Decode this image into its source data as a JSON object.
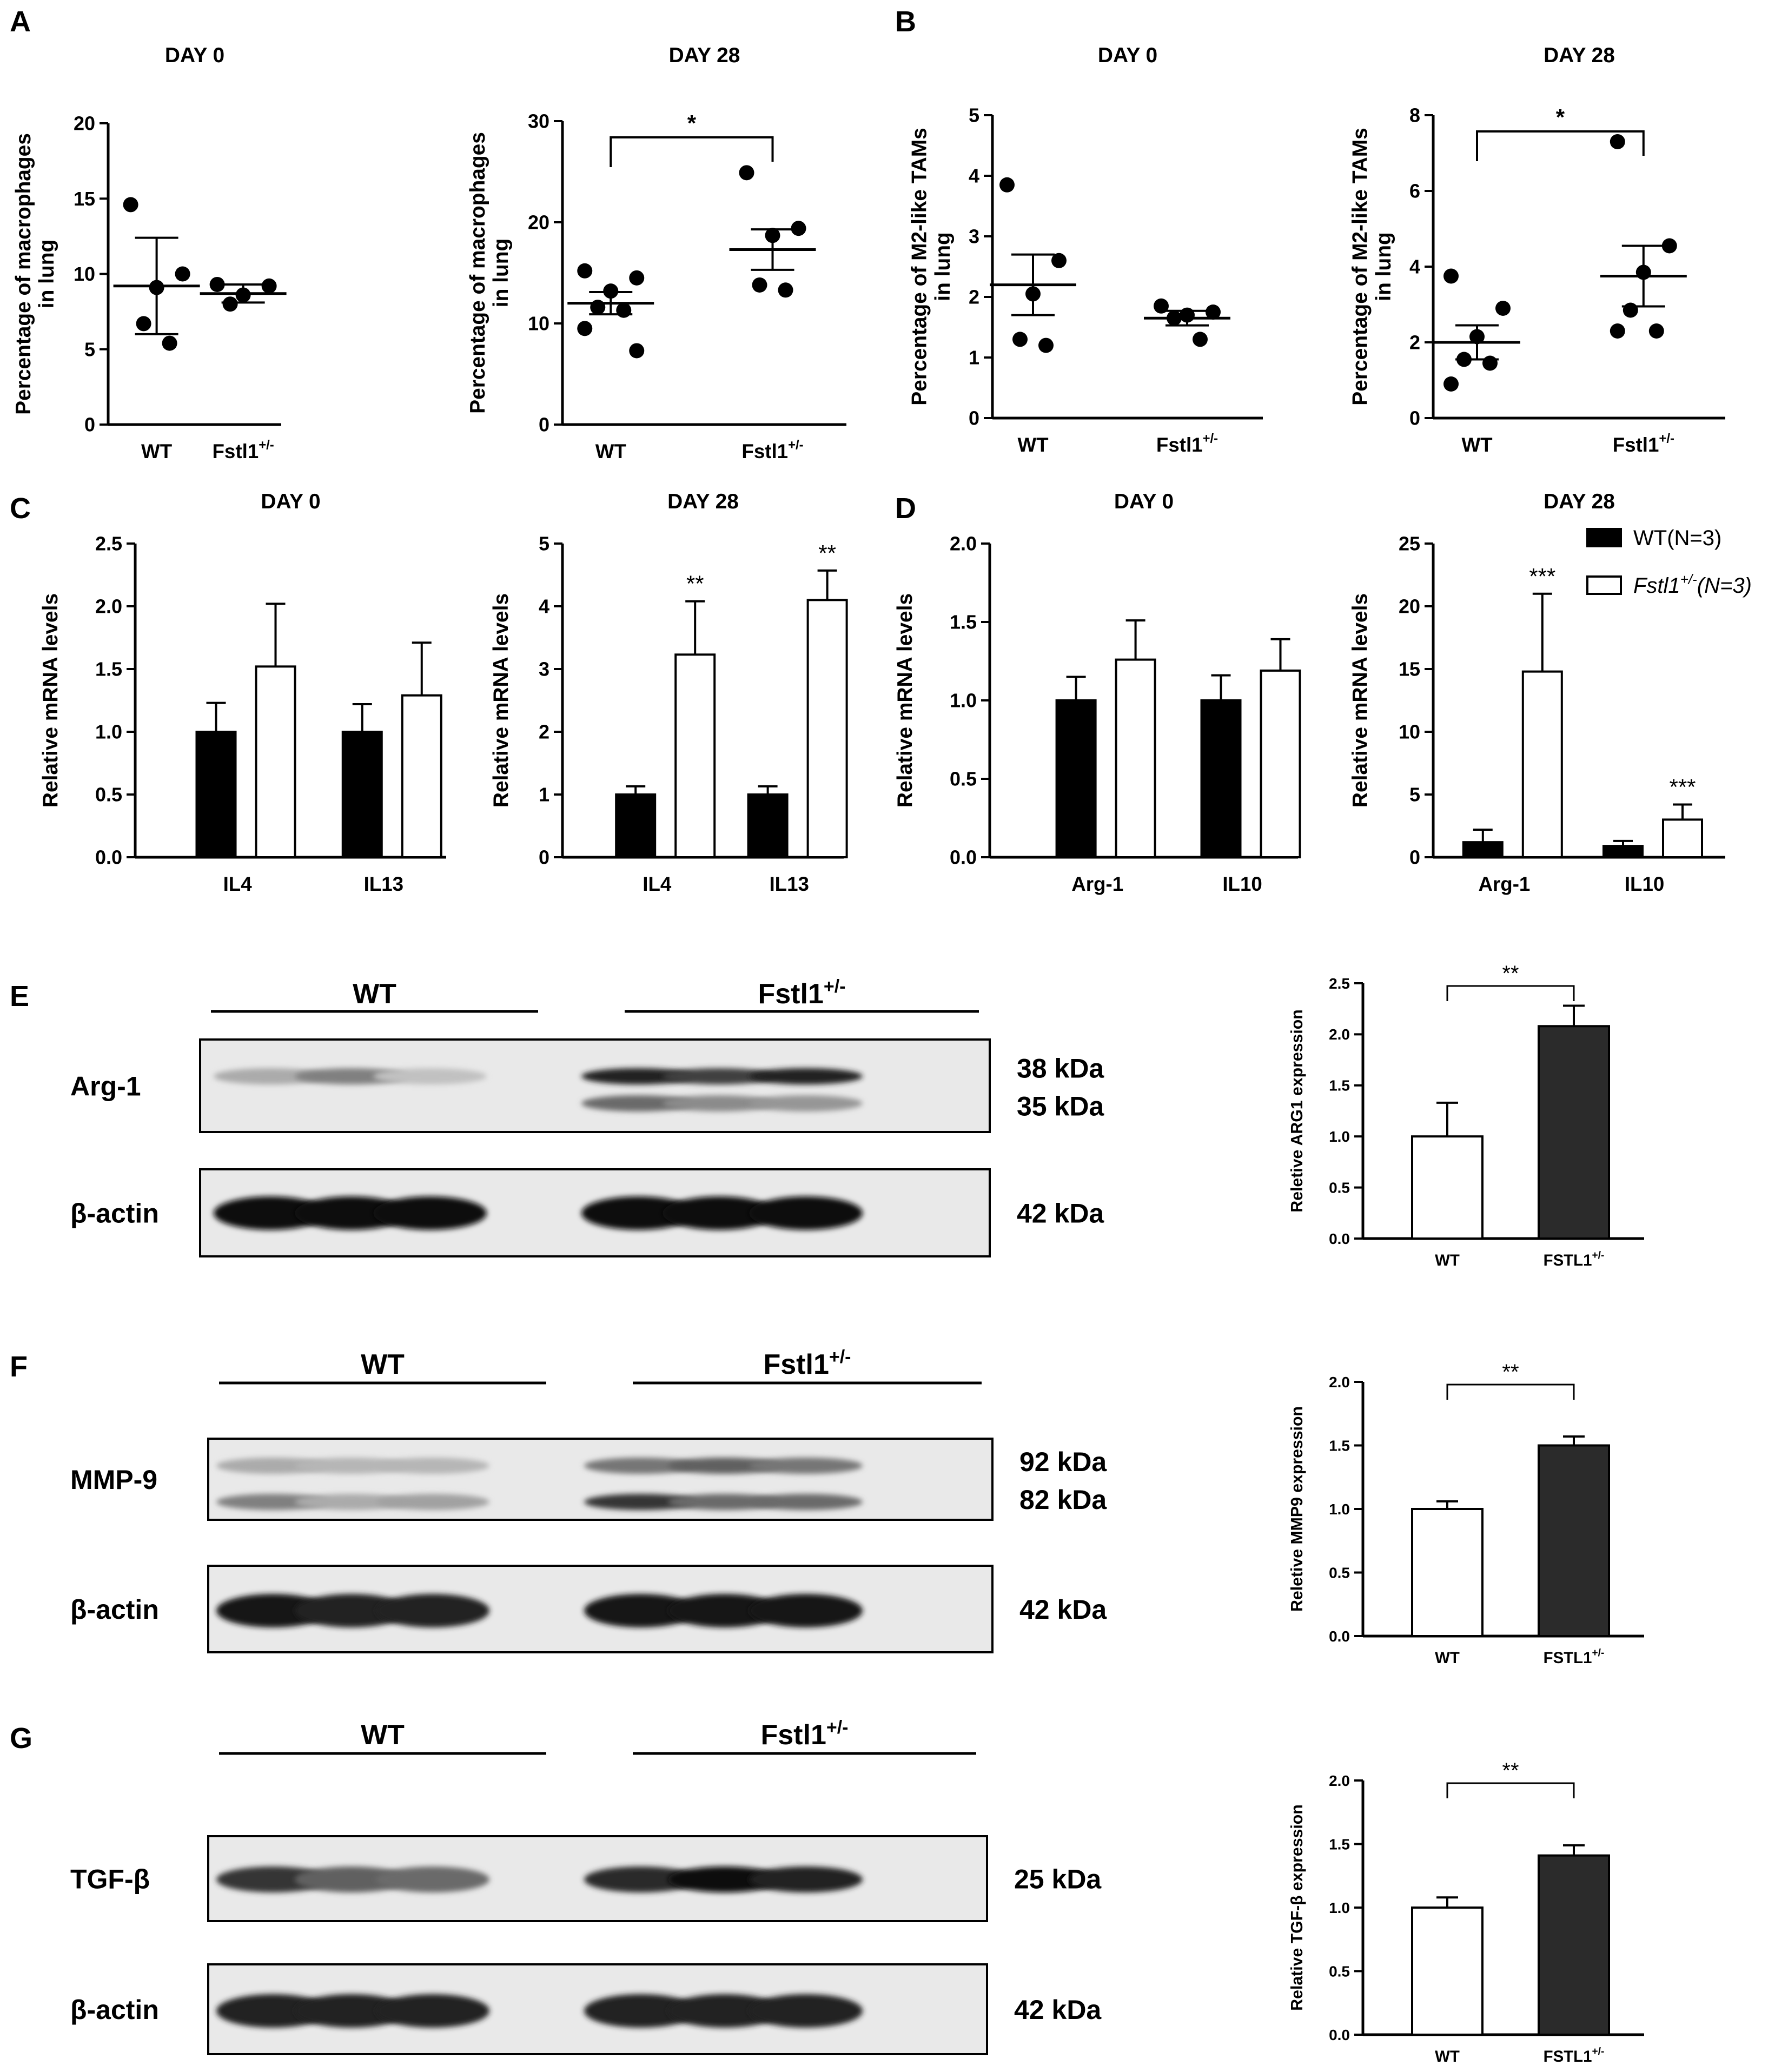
{
  "panel_letters": [
    "A",
    "B",
    "C",
    "D",
    "E",
    "F",
    "G"
  ],
  "chart_data": [
    {
      "id": "A1",
      "type": "scatter",
      "title": "DAY 0",
      "ylabel": [
        "Percentage of macrophages",
        "in lung"
      ],
      "categories": [
        "WT",
        "Fstl1"
      ],
      "category_sup": [
        "",
        "+/-"
      ],
      "ylim": [
        0,
        20
      ],
      "yticks": [
        0,
        5,
        10,
        15,
        20
      ],
      "points": [
        [
          14.6,
          10.0,
          9.1,
          6.7,
          5.4
        ],
        [
          9.3,
          9.2,
          8.6,
          8.0
        ]
      ],
      "mean": [
        9.2,
        8.7
      ],
      "sem": [
        3.2,
        0.6
      ],
      "significance": null
    },
    {
      "id": "A2",
      "type": "scatter",
      "title": "DAY 28",
      "ylabel": [
        "Percentage of macrophages",
        "in lung"
      ],
      "categories": [
        "WT",
        "Fstl1"
      ],
      "category_sup": [
        "",
        "+/-"
      ],
      "ylim": [
        0,
        30
      ],
      "yticks": [
        0,
        10,
        20,
        30
      ],
      "points": [
        [
          15.2,
          14.5,
          13.2,
          11.6,
          11.3,
          9.5,
          7.3
        ],
        [
          24.9,
          19.4,
          18.7,
          13.8,
          13.3
        ]
      ],
      "mean": [
        12.0,
        17.3
      ],
      "sem": [
        1.1,
        2.0
      ],
      "significance": "*"
    },
    {
      "id": "B1",
      "type": "scatter",
      "title": "DAY 0",
      "ylabel": [
        "Percentage of M2-like TAMs",
        "in lung"
      ],
      "categories": [
        "WT",
        "Fstl1"
      ],
      "category_sup": [
        "",
        "+/-"
      ],
      "ylim": [
        0,
        5
      ],
      "yticks": [
        0,
        1,
        2,
        3,
        4,
        5
      ],
      "points": [
        [
          3.85,
          2.6,
          2.05,
          1.3,
          1.2
        ],
        [
          1.85,
          1.75,
          1.7,
          1.65,
          1.3
        ]
      ],
      "mean": [
        2.2,
        1.65
      ],
      "sem": [
        0.5,
        0.12
      ],
      "significance": null
    },
    {
      "id": "B2",
      "type": "scatter",
      "title": "DAY 28",
      "ylabel": [
        "Percentage of M2-like TAMs",
        "in lung"
      ],
      "categories": [
        "WT",
        "Fstl1"
      ],
      "category_sup": [
        "",
        "+/-"
      ],
      "ylim": [
        0,
        8
      ],
      "yticks": [
        0,
        2,
        4,
        6,
        8
      ],
      "points": [
        [
          3.75,
          2.9,
          2.15,
          1.55,
          1.45,
          0.9
        ],
        [
          7.3,
          4.55,
          3.85,
          2.85,
          2.3,
          2.3
        ]
      ],
      "mean": [
        2.0,
        3.75
      ],
      "sem": [
        0.45,
        0.8
      ],
      "significance": "*"
    },
    {
      "id": "C1",
      "type": "bar",
      "title": "DAY 0",
      "ylabel": [
        "Relative mRNA levels"
      ],
      "categories": [
        "IL4",
        "IL13"
      ],
      "ylim": [
        0,
        2.5
      ],
      "yticks": [
        "0.0",
        "0.5",
        "1.0",
        "1.5",
        "2.0",
        "2.5"
      ],
      "series": [
        {
          "name": "WT(N=3)",
          "values": [
            1.0,
            1.0
          ],
          "err": [
            0.23,
            0.22
          ]
        },
        {
          "name": "Fstl1+/-(N=3)",
          "values": [
            1.52,
            1.29
          ],
          "err": [
            0.5,
            0.42
          ]
        }
      ],
      "significance": [
        null,
        null
      ]
    },
    {
      "id": "C2",
      "type": "bar",
      "title": "DAY 28",
      "ylabel": [
        "Relative mRNA levels"
      ],
      "categories": [
        "IL4",
        "IL13"
      ],
      "ylim": [
        0,
        5
      ],
      "yticks": [
        "0",
        "1",
        "2",
        "3",
        "4",
        "5"
      ],
      "series": [
        {
          "name": "WT(N=3)",
          "values": [
            1.0,
            1.0
          ],
          "err": [
            0.13,
            0.13
          ]
        },
        {
          "name": "Fstl1+/-(N=3)",
          "values": [
            3.23,
            4.1
          ],
          "err": [
            0.85,
            0.47
          ]
        }
      ],
      "significance": [
        "**",
        "**"
      ]
    },
    {
      "id": "D1",
      "type": "bar",
      "title": "DAY 0",
      "ylabel": [
        "Relative mRNA levels"
      ],
      "categories": [
        "Arg-1",
        "IL10"
      ],
      "ylim": [
        0,
        2.0
      ],
      "yticks": [
        "0.0",
        "0.5",
        "1.0",
        "1.5",
        "2.0"
      ],
      "series": [
        {
          "name": "WT(N=3)",
          "values": [
            1.0,
            1.0
          ],
          "err": [
            0.15,
            0.16
          ]
        },
        {
          "name": "Fstl1+/-(N=3)",
          "values": [
            1.26,
            1.19
          ],
          "err": [
            0.25,
            0.2
          ]
        }
      ],
      "significance": [
        null,
        null
      ]
    },
    {
      "id": "D2",
      "type": "bar",
      "title": "DAY 28",
      "ylabel": [
        "Relative mRNA levels"
      ],
      "categories": [
        "Arg-1",
        "IL10"
      ],
      "ylim": [
        0,
        25
      ],
      "yticks": [
        "0",
        "5",
        "10",
        "15",
        "20",
        "25"
      ],
      "series": [
        {
          "name": "WT(N=3)",
          "values": [
            1.2,
            0.9
          ],
          "err": [
            1.0,
            0.4
          ]
        },
        {
          "name": "Fstl1+/-(N=3)",
          "values": [
            14.8,
            3.0
          ],
          "err": [
            6.2,
            1.2
          ]
        }
      ],
      "significance": [
        "***",
        "***"
      ],
      "legend": [
        {
          "main": "WT(N=3)",
          "sup": "",
          "rest": "",
          "fill": "#000000",
          "italic": false
        },
        {
          "main": "Fstl1",
          "sup": "+/-",
          "rest": "(N=3)",
          "fill": "#ffffff",
          "italic": true
        }
      ]
    },
    {
      "id": "E",
      "type": "bar",
      "title": "",
      "ylabel": [
        "Reletive ARG1 expression"
      ],
      "categories": [
        "WT",
        "FSTL1"
      ],
      "category_sup": [
        "",
        "+/-"
      ],
      "ylim": [
        0,
        2.5
      ],
      "yticks": [
        "0.0",
        "0.5",
        "1.0",
        "1.5",
        "2.0",
        "2.5"
      ],
      "values": [
        1.0,
        2.08
      ],
      "err": [
        0.33,
        0.2
      ],
      "fills": [
        "#ffffff",
        "#2b2b2b"
      ],
      "significance": "**"
    },
    {
      "id": "F",
      "type": "bar",
      "title": "",
      "ylabel": [
        "Reletive MMP9 expression"
      ],
      "categories": [
        "WT",
        "FSTL1"
      ],
      "category_sup": [
        "",
        "+/-"
      ],
      "ylim": [
        0,
        2.0
      ],
      "yticks": [
        "0.0",
        "0.5",
        "1.0",
        "1.5",
        "2.0"
      ],
      "values": [
        1.0,
        1.5
      ],
      "err": [
        0.06,
        0.07
      ],
      "fills": [
        "#ffffff",
        "#2b2b2b"
      ],
      "significance": "**"
    },
    {
      "id": "G",
      "type": "bar",
      "title": "",
      "ylabel": [
        "Relative TGF-β expression"
      ],
      "categories": [
        "WT",
        "FSTL1"
      ],
      "category_sup": [
        "",
        "+/-"
      ],
      "ylim": [
        0,
        2.0
      ],
      "yticks": [
        "0.0",
        "0.5",
        "1.0",
        "1.5",
        "2.0"
      ],
      "values": [
        1.0,
        1.41
      ],
      "err": [
        0.08,
        0.08
      ],
      "fills": [
        "#ffffff",
        "#2b2b2b"
      ],
      "significance": "**"
    }
  ],
  "blots": [
    {
      "id": "E",
      "group_labels": [
        {
          "main": "WT",
          "sup": ""
        },
        {
          "main": "Fstl1",
          "sup": "+/-"
        }
      ],
      "rows": [
        {
          "label": "Arg-1",
          "kda": [
            "38 kDa",
            "35 kDa"
          ],
          "bands": [
            [
              0.25,
              0.0
            ],
            [
              0.45,
              0.0
            ],
            [
              0.15,
              0.0
            ],
            [
              0.9,
              0.55
            ],
            [
              0.75,
              0.4
            ],
            [
              0.9,
              0.35
            ]
          ]
        },
        {
          "label": "β-actin",
          "kda": [
            "42 kDa"
          ],
          "bands": [
            [
              1.0
            ],
            [
              1.0
            ],
            [
              1.0
            ],
            [
              1.0
            ],
            [
              1.0
            ],
            [
              1.0
            ]
          ]
        }
      ]
    },
    {
      "id": "F",
      "group_labels": [
        {
          "main": "WT",
          "sup": ""
        },
        {
          "main": "Fstl1",
          "sup": "+/-"
        }
      ],
      "rows": [
        {
          "label": "MMP-9",
          "kda": [
            "92 kDa",
            "82 kDa"
          ],
          "bands": [
            [
              0.25,
              0.45
            ],
            [
              0.2,
              0.25
            ],
            [
              0.2,
              0.3
            ],
            [
              0.5,
              0.8
            ],
            [
              0.6,
              0.55
            ],
            [
              0.5,
              0.55
            ]
          ]
        },
        {
          "label": "β-actin",
          "kda": [
            "42 kDa"
          ],
          "bands": [
            [
              0.95
            ],
            [
              0.9
            ],
            [
              0.9
            ],
            [
              0.95
            ],
            [
              0.95
            ],
            [
              0.95
            ]
          ]
        }
      ]
    },
    {
      "id": "G",
      "group_labels": [
        {
          "main": "WT",
          "sup": ""
        },
        {
          "main": "Fstl1",
          "sup": "+/-"
        }
      ],
      "rows": [
        {
          "label": "TGF-β",
          "kda": [
            "25 kDa"
          ],
          "bands": [
            [
              0.8
            ],
            [
              0.6
            ],
            [
              0.55
            ],
            [
              0.85
            ],
            [
              1.0
            ],
            [
              0.9
            ]
          ]
        },
        {
          "label": "β-actin",
          "kda": [
            "42 kDa"
          ],
          "bands": [
            [
              0.9
            ],
            [
              0.9
            ],
            [
              0.9
            ],
            [
              0.9
            ],
            [
              0.9
            ],
            [
              0.9
            ]
          ]
        }
      ]
    }
  ]
}
